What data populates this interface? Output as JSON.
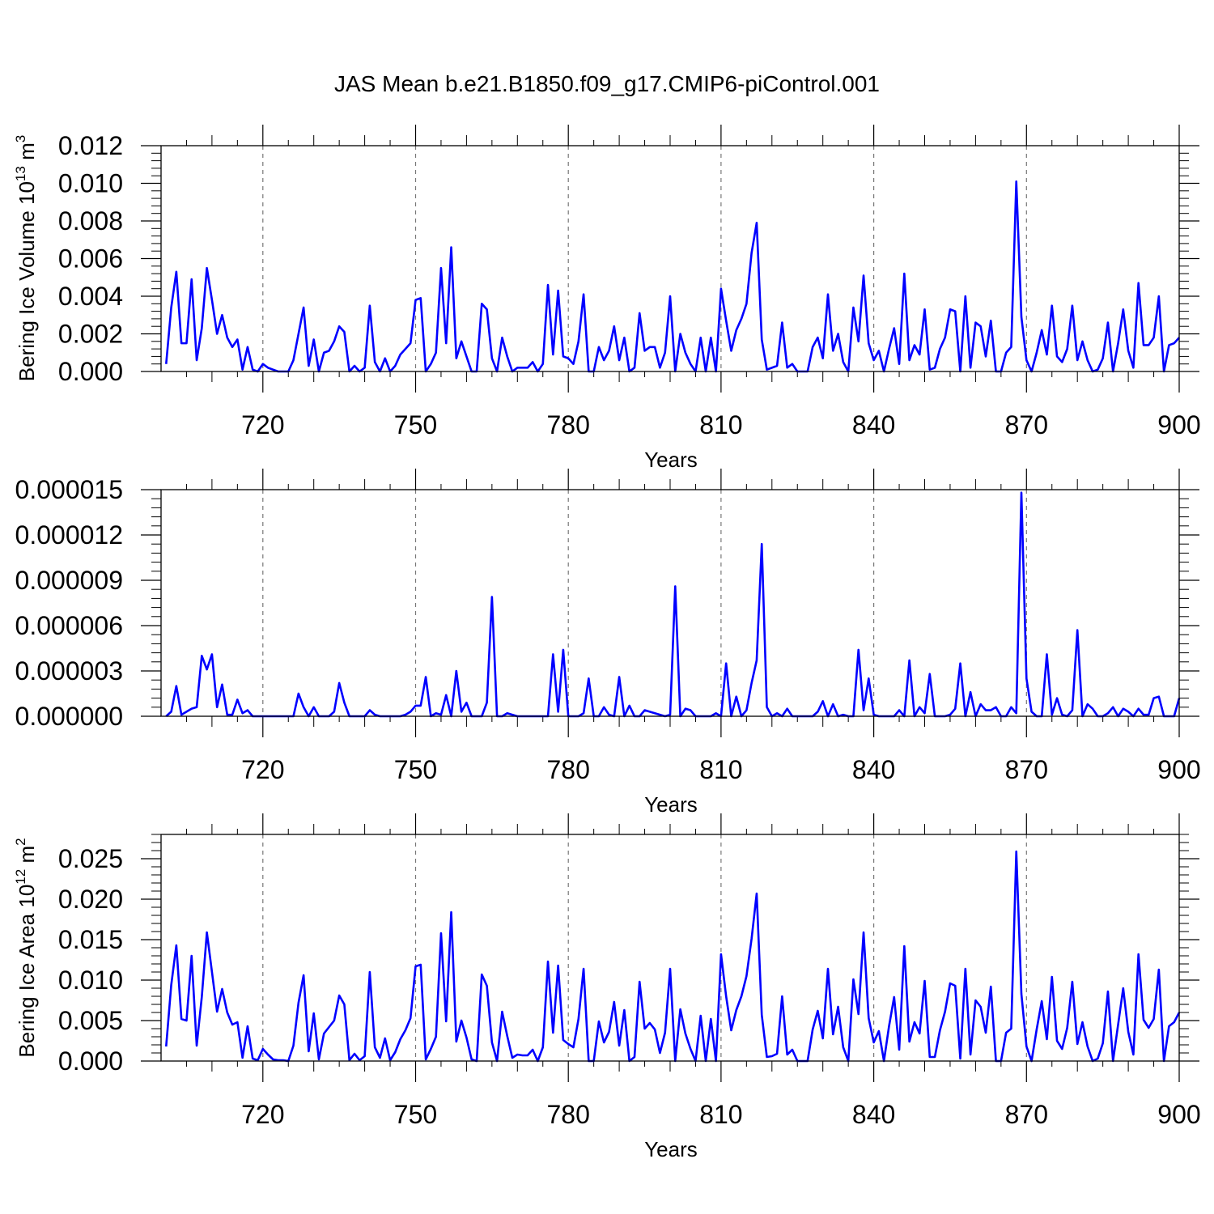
{
  "title": "JAS Mean b.e21.B1850.f09_g17.CMIP6-piControl.001",
  "line_color": "#0000ff",
  "chart_data": [
    {
      "type": "line",
      "ylabel_main": "Bering Ice Volume 10",
      "ylabel_sup1": "13",
      "ylabel_mid": " m",
      "ylabel_sup2": "3",
      "xlabel": "Years",
      "xlim": [
        700,
        900
      ],
      "ylim": [
        0,
        0.012
      ],
      "grid": "vertical dashed",
      "xticks": [
        720,
        750,
        780,
        810,
        840,
        870,
        900
      ],
      "xtick_labels": [
        "720",
        "750",
        "780",
        "810",
        "840",
        "870",
        "900"
      ],
      "yticks": [
        0,
        0.002,
        0.004,
        0.006,
        0.008,
        0.01,
        0.012
      ],
      "ytick_labels": [
        "0.000",
        "0.002",
        "0.004",
        "0.006",
        "0.008",
        "0.010",
        "0.012"
      ],
      "x_start": 701,
      "values": [
        0.0004,
        0.0034,
        0.0053,
        0.0015,
        0.0015,
        0.0049,
        0.0006,
        0.0023,
        0.0055,
        0.0038,
        0.002,
        0.003,
        0.0018,
        0.0013,
        0.0017,
        0.0001,
        0.0013,
        0.0001,
        0.0,
        0.0004,
        0.0002,
        0.0001,
        0.0,
        0.0,
        0.0,
        0.0006,
        0.002,
        0.0034,
        0.0003,
        0.0017,
        0.0,
        0.001,
        0.0011,
        0.0016,
        0.0024,
        0.0021,
        0.0,
        0.0003,
        0.0,
        0.0002,
        0.0035,
        0.0005,
        0.0,
        0.0007,
        0.0,
        0.0003,
        0.0009,
        0.0012,
        0.0015,
        0.0038,
        0.0039,
        0.0,
        0.0004,
        0.001,
        0.0055,
        0.0015,
        0.0066,
        0.0007,
        0.0016,
        0.0008,
        0.0,
        0.0,
        0.0036,
        0.0033,
        0.0007,
        0.0,
        0.0018,
        0.0008,
        0.0,
        0.0002,
        0.0002,
        0.0002,
        0.0005,
        0.0,
        0.0004,
        0.0046,
        0.0009,
        0.0043,
        0.0008,
        0.0007,
        0.0004,
        0.0016,
        0.0041,
        0.0,
        0.0,
        0.0013,
        0.0006,
        0.0011,
        0.0024,
        0.0006,
        0.0018,
        0.0,
        0.0002,
        0.0031,
        0.0011,
        0.0013,
        0.0013,
        0.0002,
        0.001,
        0.004,
        0.0,
        0.002,
        0.001,
        0.0004,
        0.0,
        0.0018,
        0.0,
        0.0018,
        0.0,
        0.0044,
        0.0027,
        0.0011,
        0.0022,
        0.0028,
        0.0036,
        0.0063,
        0.0079,
        0.0017,
        0.0001,
        0.0002,
        0.0003,
        0.0026,
        0.0002,
        0.0004,
        0.0,
        0.0,
        0.0,
        0.0013,
        0.0018,
        0.0007,
        0.0041,
        0.0011,
        0.002,
        0.0005,
        0.0,
        0.0034,
        0.0016,
        0.0051,
        0.0015,
        0.0006,
        0.0011,
        0.0,
        0.0012,
        0.0023,
        0.0004,
        0.0052,
        0.0006,
        0.0014,
        0.0009,
        0.0033,
        0.0001,
        0.0002,
        0.0012,
        0.0018,
        0.0033,
        0.0032,
        0.0,
        0.004,
        0.0002,
        0.0026,
        0.0024,
        0.0008,
        0.0027,
        0.0,
        0.0,
        0.001,
        0.0013,
        0.0101,
        0.0029,
        0.0006,
        0.0,
        0.001,
        0.0022,
        0.0009,
        0.0035,
        0.0008,
        0.0005,
        0.0012,
        0.0035,
        0.0006,
        0.0016,
        0.0006,
        0.0,
        0.0001,
        0.0007,
        0.0026,
        0.0,
        0.0015,
        0.0033,
        0.0011,
        0.0002,
        0.0047,
        0.0014,
        0.0014,
        0.0018,
        0.004,
        0.0,
        0.0014,
        0.0015,
        0.0018
      ]
    },
    {
      "type": "line",
      "ylabel_main": "",
      "ylabel_sup1": "",
      "ylabel_mid": "",
      "ylabel_sup2": "",
      "xlabel": "Years",
      "xlim": [
        700,
        900
      ],
      "ylim": [
        0,
        1.5e-05
      ],
      "grid": "vertical dashed",
      "xticks": [
        720,
        750,
        780,
        810,
        840,
        870,
        900
      ],
      "xtick_labels": [
        "720",
        "750",
        "780",
        "810",
        "840",
        "870",
        "900"
      ],
      "yticks": [
        0,
        3e-06,
        6e-06,
        9e-06,
        1.2e-05,
        1.5e-05
      ],
      "ytick_labels": [
        "0.000000",
        "0.000003",
        "0.000006",
        "0.000009",
        "0.000012",
        "0.000015"
      ],
      "x_start": 701,
      "values": [
        0.0,
        3e-07,
        2e-06,
        1e-07,
        3e-07,
        5e-07,
        6e-07,
        4e-06,
        3.1e-06,
        4.1e-06,
        6e-07,
        2.1e-06,
        1e-07,
        1e-07,
        1.1e-06,
        2e-07,
        4e-07,
        0.0,
        0.0,
        0.0,
        0.0,
        0.0,
        0.0,
        0.0,
        0.0,
        0.0,
        1.5e-06,
        6e-07,
        0.0,
        6e-07,
        0.0,
        0.0,
        0.0,
        3e-07,
        2.2e-06,
        9e-07,
        0.0,
        0.0,
        0.0,
        0.0,
        4e-07,
        1e-07,
        0.0,
        0.0,
        0.0,
        0.0,
        0.0,
        1e-07,
        3e-07,
        7e-07,
        7e-07,
        2.6e-06,
        0.0,
        2e-07,
        1e-07,
        1.4e-06,
        0.0,
        3e-06,
        3e-07,
        9e-07,
        0.0,
        0.0,
        0.0,
        9e-07,
        7.9e-06,
        0.0,
        0.0,
        2e-07,
        1e-07,
        0.0,
        0.0,
        0.0,
        0.0,
        0.0,
        0.0,
        0.0,
        4.1e-06,
        3e-07,
        4.4e-06,
        0.0,
        0.0,
        0.0,
        2e-07,
        2.5e-06,
        0.0,
        0.0,
        6e-07,
        1e-07,
        0.0,
        2.6e-06,
        0.0,
        7e-07,
        0.0,
        0.0,
        4e-07,
        3e-07,
        2e-07,
        1e-07,
        0.0,
        1e-07,
        8.6e-06,
        0.0,
        5e-07,
        4e-07,
        0.0,
        0.0,
        0.0,
        0.0,
        2e-07,
        0.0,
        3.5e-06,
        0.0,
        1.3e-06,
        0.0,
        4e-07,
        2.2e-06,
        3.7e-06,
        1.14e-05,
        6e-07,
        0.0,
        2e-07,
        0.0,
        5e-07,
        0.0,
        0.0,
        0.0,
        0.0,
        0.0,
        3e-07,
        1e-06,
        0.0,
        8e-07,
        0.0,
        1e-07,
        0.0,
        0.0,
        4.4e-06,
        4e-07,
        2.5e-06,
        1e-07,
        0.0,
        0.0,
        0.0,
        0.0,
        4e-07,
        0.0,
        3.7e-06,
        0.0,
        6e-07,
        2e-07,
        2.8e-06,
        0.0,
        0.0,
        0.0,
        1e-07,
        5e-07,
        3.5e-06,
        0.0,
        1.6e-06,
        0.0,
        8e-07,
        4e-07,
        4e-07,
        6e-07,
        0.0,
        0.0,
        6e-07,
        2e-07,
        1.48e-05,
        2.5e-06,
        3e-07,
        0.0,
        0.0,
        4.1e-06,
        1e-07,
        1.2e-06,
        1e-07,
        0.0,
        4e-07,
        5.7e-06,
        0.0,
        8e-07,
        5e-07,
        0.0,
        0.0,
        2e-07,
        6e-07,
        0.0,
        5e-07,
        3e-07,
        0.0,
        5e-07,
        1e-07,
        1e-07,
        1.2e-06,
        1.3e-06,
        0.0,
        0.0,
        0.0,
        1.2e-06
      ]
    },
    {
      "type": "line",
      "ylabel_main": "Bering Ice Area 10",
      "ylabel_sup1": "12",
      "ylabel_mid": " m",
      "ylabel_sup2": "2",
      "xlabel": "Years",
      "xlim": [
        700,
        900
      ],
      "ylim": [
        0,
        0.028
      ],
      "grid": "vertical dashed",
      "xticks": [
        720,
        750,
        780,
        810,
        840,
        870,
        900
      ],
      "xtick_labels": [
        "720",
        "750",
        "780",
        "810",
        "840",
        "870",
        "900"
      ],
      "yticks": [
        0,
        0.005,
        0.01,
        0.015,
        0.02,
        0.025
      ],
      "ytick_labels": [
        "0.000",
        "0.005",
        "0.010",
        "0.015",
        "0.020",
        "0.025"
      ],
      "x_start": 701,
      "values": [
        0.0018,
        0.0094,
        0.0143,
        0.0052,
        0.005,
        0.013,
        0.0019,
        0.0079,
        0.0159,
        0.011,
        0.0061,
        0.0089,
        0.006,
        0.0045,
        0.0048,
        0.0004,
        0.0043,
        0.0003,
        0.0001,
        0.0015,
        0.0008,
        0.0002,
        0.0001,
        0.0001,
        0.0,
        0.0019,
        0.0072,
        0.0106,
        0.0012,
        0.0059,
        0.0002,
        0.0034,
        0.0042,
        0.005,
        0.0081,
        0.007,
        0.0001,
        0.0009,
        0.0001,
        0.0006,
        0.011,
        0.0017,
        0.0004,
        0.0028,
        0.0001,
        0.0011,
        0.0027,
        0.0038,
        0.0053,
        0.0117,
        0.0119,
        0.0002,
        0.0015,
        0.003,
        0.0158,
        0.0049,
        0.0184,
        0.0024,
        0.005,
        0.0029,
        0.0002,
        0.0,
        0.0107,
        0.0093,
        0.0023,
        0.0,
        0.0061,
        0.0031,
        0.0004,
        0.0008,
        0.0007,
        0.0007,
        0.0014,
        0.0,
        0.0017,
        0.0123,
        0.0035,
        0.0118,
        0.0026,
        0.0021,
        0.0017,
        0.0052,
        0.0114,
        0.0,
        0.0,
        0.0049,
        0.0023,
        0.0036,
        0.0073,
        0.0019,
        0.0063,
        0.0,
        0.0005,
        0.0098,
        0.004,
        0.0047,
        0.0039,
        0.001,
        0.0035,
        0.0114,
        0.0,
        0.0064,
        0.0034,
        0.0015,
        0.0,
        0.0056,
        0.0,
        0.0052,
        0.0,
        0.0132,
        0.008,
        0.0038,
        0.0063,
        0.008,
        0.0105,
        0.0151,
        0.0207,
        0.0057,
        0.0005,
        0.0006,
        0.0009,
        0.008,
        0.0008,
        0.0014,
        0.0,
        0.0,
        0.0,
        0.0039,
        0.0062,
        0.0028,
        0.0114,
        0.0033,
        0.0067,
        0.0017,
        0.0,
        0.0101,
        0.0058,
        0.0159,
        0.0053,
        0.0023,
        0.0037,
        0.0,
        0.0043,
        0.0079,
        0.0014,
        0.0142,
        0.0024,
        0.0048,
        0.0034,
        0.0099,
        0.0005,
        0.0005,
        0.0038,
        0.0061,
        0.0096,
        0.0093,
        0.0003,
        0.0114,
        0.0008,
        0.0075,
        0.0067,
        0.0035,
        0.0092,
        0.0,
        0.0,
        0.0035,
        0.004,
        0.0259,
        0.0083,
        0.0018,
        0.0,
        0.0039,
        0.0074,
        0.0027,
        0.0104,
        0.0025,
        0.0015,
        0.0041,
        0.0098,
        0.0021,
        0.0048,
        0.0018,
        0.0,
        0.0003,
        0.0022,
        0.0086,
        0.0,
        0.0045,
        0.009,
        0.0036,
        0.0008,
        0.0132,
        0.0051,
        0.0041,
        0.0052,
        0.0113,
        0.0,
        0.0043,
        0.0048,
        0.006
      ]
    }
  ]
}
